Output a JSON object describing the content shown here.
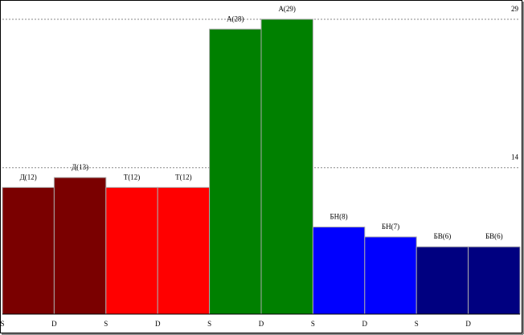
{
  "chart_data": {
    "type": "bar",
    "categories": [
      "S",
      "D",
      "S",
      "D",
      "S",
      "D",
      "S",
      "D",
      "S",
      "D"
    ],
    "values": [
      12,
      13,
      12,
      12,
      28,
      29,
      8,
      7,
      6,
      6
    ],
    "value_labels": [
      "Д(12)",
      "Д(13)",
      "Т(12)",
      "Т(12)",
      "А(28)",
      "А(29)",
      "БН(8)",
      "БН(7)",
      "БВ(6)",
      "БВ(6)"
    ],
    "colors": [
      "#7a0000",
      "#7a0000",
      "#ff0000",
      "#ff0000",
      "#008000",
      "#008000",
      "#0000ff",
      "#0000ff",
      "#000080",
      "#000080"
    ],
    "ylim": [
      -0.8,
      30.7
    ],
    "yticks": [
      14,
      29
    ],
    "grid": true
  }
}
